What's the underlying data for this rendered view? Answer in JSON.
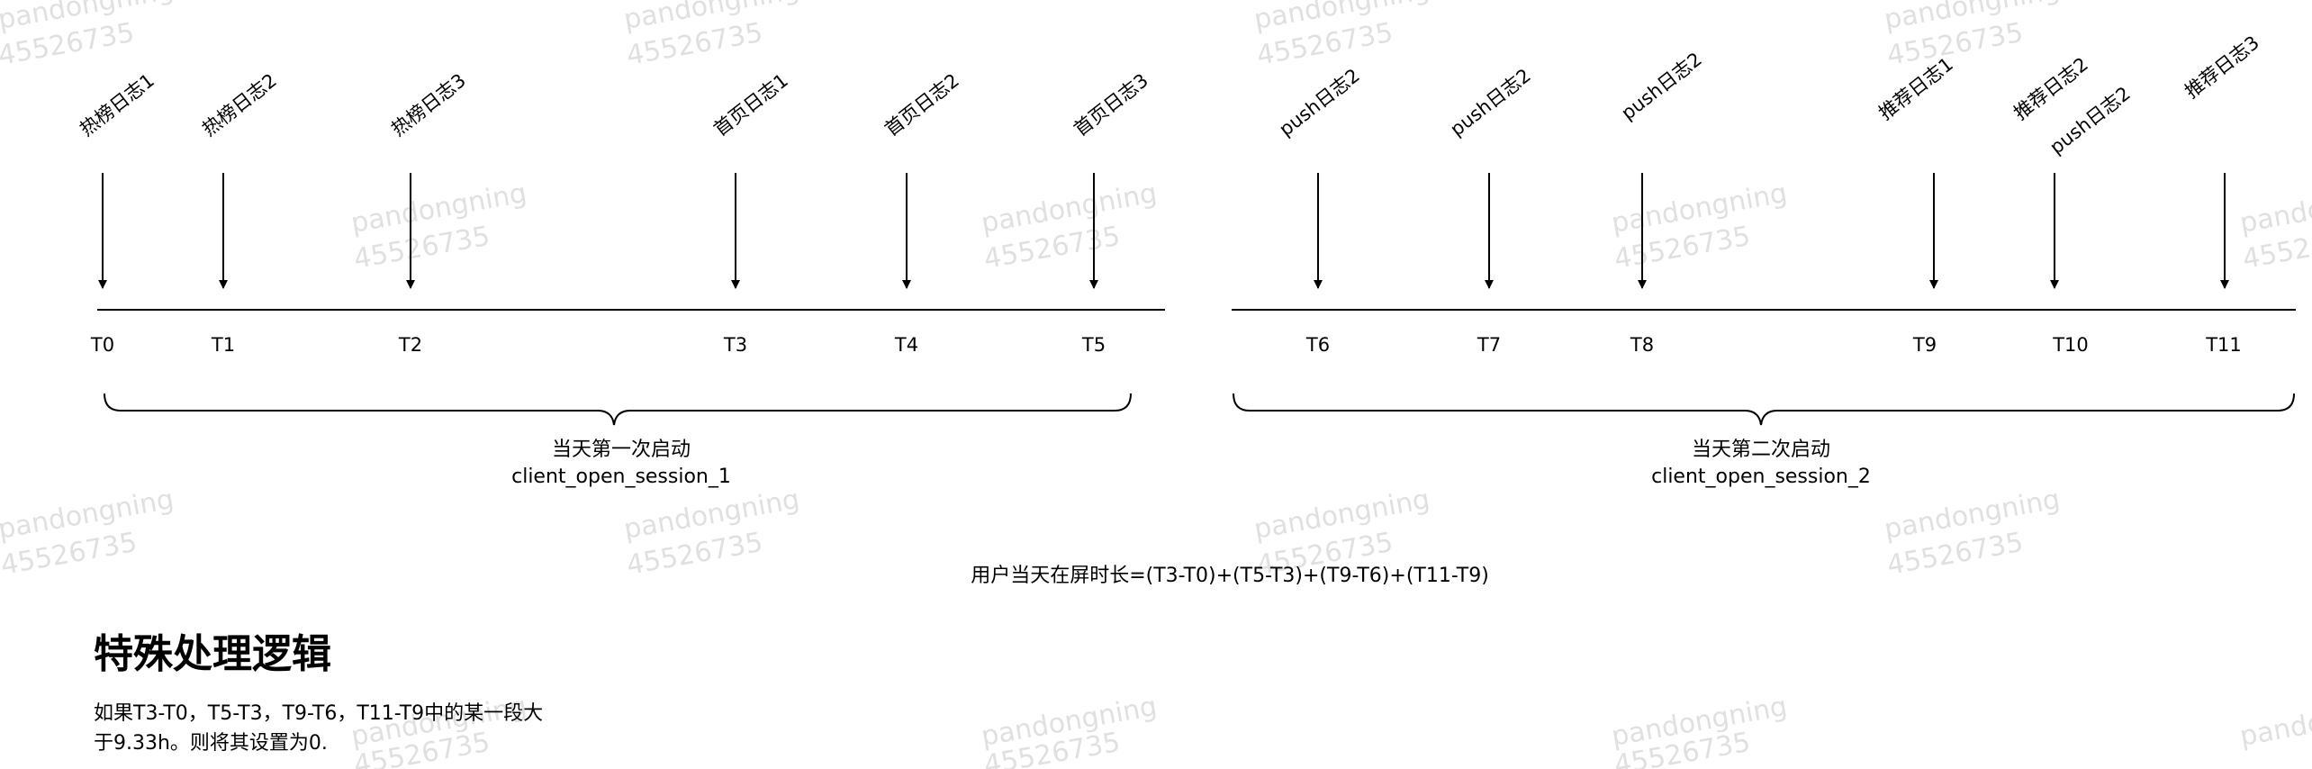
{
  "events": [
    "热榜日志1",
    "热榜日志2",
    "热榜日志3",
    "首页日志1",
    "首页日志2",
    "首页日志3",
    "push日志2",
    "push日志2",
    "push日志2",
    "推荐日志1",
    "推荐日志2",
    "push日志2",
    "推荐日志3"
  ],
  "ticks": [
    "T0",
    "T1",
    "T2",
    "T3",
    "T4",
    "T5",
    "T6",
    "T7",
    "T8",
    "T9",
    "T10",
    "T11"
  ],
  "sessions": [
    {
      "title": "当天第一次启动",
      "id": "client_open_session_1"
    },
    {
      "title": "当天第二次启动",
      "id": "client_open_session_2"
    }
  ],
  "formula": "用户当天在屏时长=(T3-T0)+(T5-T3)+(T9-T6)+(T11-T9)",
  "special": {
    "title": "特殊处理逻辑",
    "line1": "如果T3-T0，T5-T3，T9-T6，T11-T9中的某一段大",
    "line2": "于9.33h。则将其设置为0."
  },
  "watermark": {
    "name": "pandongning",
    "id": "45526735"
  }
}
